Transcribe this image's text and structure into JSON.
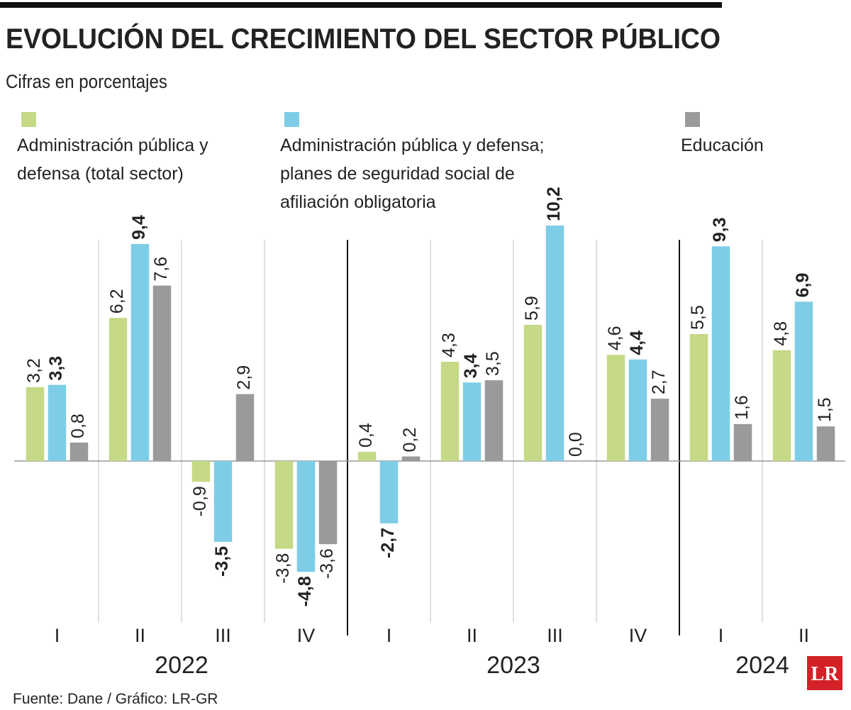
{
  "chart_data": {
    "type": "bar",
    "title": "EVOLUCIÓN DEL CRECIMIENTO DEL SECTOR PÚBLICO",
    "subtitle": "Cifras en porcentajes",
    "groups": [
      {
        "label": "2022",
        "categories": [
          "I",
          "II",
          "III",
          "IV"
        ]
      },
      {
        "label": "2023",
        "categories": [
          "I",
          "II",
          "III",
          "IV"
        ]
      },
      {
        "label": "2024",
        "categories": [
          "I",
          "II"
        ]
      }
    ],
    "series": [
      {
        "name": "Administración pública y defensa (total sector)",
        "color": "#c5d986",
        "values": [
          3.2,
          6.2,
          -0.9,
          -3.8,
          0.4,
          4.3,
          5.9,
          4.6,
          5.5,
          4.8
        ],
        "value_labels": [
          "3,2",
          "6,2",
          "-0,9",
          "-3,8",
          "0,4",
          "4,3",
          "5,9",
          "4,6",
          "5,5",
          "4,8"
        ]
      },
      {
        "name": "Administración pública y defensa; planes de seguridad social de afiliación obligatoria",
        "color": "#7ecde6",
        "values": [
          3.3,
          9.4,
          -3.5,
          -4.8,
          -2.7,
          3.4,
          10.2,
          4.4,
          9.3,
          6.9
        ],
        "value_labels": [
          "3,3",
          "9,4",
          "-3,5",
          "-4,8",
          "-2,7",
          "3,4",
          "10,2",
          "4,4",
          "9,3",
          "6,9"
        ],
        "bold_labels": true
      },
      {
        "name": "Educación",
        "color": "#9a9a9a",
        "values": [
          0.8,
          7.6,
          2.9,
          -3.6,
          0.2,
          3.5,
          0.0,
          2.7,
          1.6,
          1.5
        ],
        "value_labels": [
          "0,8",
          "7,6",
          "2,9",
          "-3,6",
          "0,2",
          "3,5",
          "0,0",
          "2,7",
          "1,6",
          "1,5"
        ]
      }
    ],
    "ylim": [
      -7,
      10.5
    ],
    "source": "Fuente: Dane / Gráfico: LR-GR",
    "logo": "LR"
  }
}
